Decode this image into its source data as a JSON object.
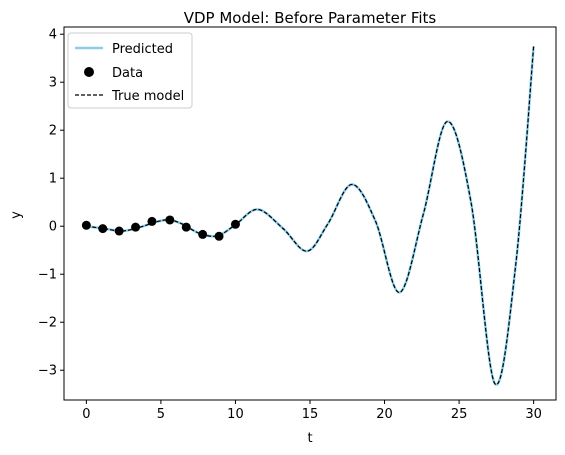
{
  "chart_data": {
    "type": "line",
    "title": "VDP Model: Before Parameter Fits",
    "xlabel": "t",
    "ylabel": "y",
    "xlim": [
      -1.5,
      31.5
    ],
    "ylim": [
      -3.62,
      4.15
    ],
    "xticks": [
      0,
      5,
      10,
      15,
      20,
      25,
      30
    ],
    "yticks": [
      -3,
      -2,
      -1,
      0,
      1,
      2,
      3,
      4
    ],
    "xtick_labels": [
      "0",
      "5",
      "10",
      "15",
      "20",
      "25",
      "30"
    ],
    "ytick_labels": [
      "−3",
      "−2",
      "−1",
      "0",
      "1",
      "2",
      "3",
      "4"
    ],
    "legend_position": "top-left",
    "series": [
      {
        "name": "Predicted",
        "kind": "line",
        "color": "#87CEEB",
        "x": [
          0,
          1.2,
          2.4,
          3.6,
          4.8,
          5.6,
          6.4,
          7.6,
          8.8,
          10.0,
          11.5,
          13.2,
          14.8,
          16.2,
          17.8,
          19.4,
          21.0,
          22.6,
          24.2,
          25.8,
          27.4,
          28.8,
          30.0
        ],
        "y": [
          0.0,
          -0.05,
          -0.1,
          -0.02,
          0.1,
          0.13,
          0.05,
          -0.15,
          -0.2,
          0.03,
          0.35,
          -0.05,
          -0.52,
          0.05,
          0.87,
          0.1,
          -1.38,
          0.25,
          2.18,
          0.5,
          -3.28,
          -0.8,
          3.75
        ]
      },
      {
        "name": "Data",
        "kind": "scatter",
        "color": "#000000",
        "x": [
          0.0,
          1.1,
          2.2,
          3.3,
          4.4,
          5.6,
          6.7,
          7.8,
          8.9,
          10.0
        ],
        "y": [
          0.02,
          -0.05,
          -0.1,
          -0.02,
          0.1,
          0.13,
          -0.02,
          -0.17,
          -0.21,
          0.04
        ]
      },
      {
        "name": "True model",
        "kind": "dashed-line",
        "color": "#000000",
        "x": [
          0,
          1.2,
          2.4,
          3.6,
          4.8,
          5.6,
          6.4,
          7.6,
          8.8,
          10.0,
          11.5,
          13.2,
          14.8,
          16.2,
          17.8,
          19.4,
          21.0,
          22.6,
          24.2,
          25.8,
          27.4,
          28.8,
          30.0
        ],
        "y": [
          0.0,
          -0.05,
          -0.1,
          -0.02,
          0.1,
          0.13,
          0.05,
          -0.15,
          -0.2,
          0.03,
          0.35,
          -0.05,
          -0.52,
          0.05,
          0.87,
          0.1,
          -1.38,
          0.25,
          2.18,
          0.5,
          -3.28,
          -0.8,
          3.75
        ]
      }
    ]
  }
}
